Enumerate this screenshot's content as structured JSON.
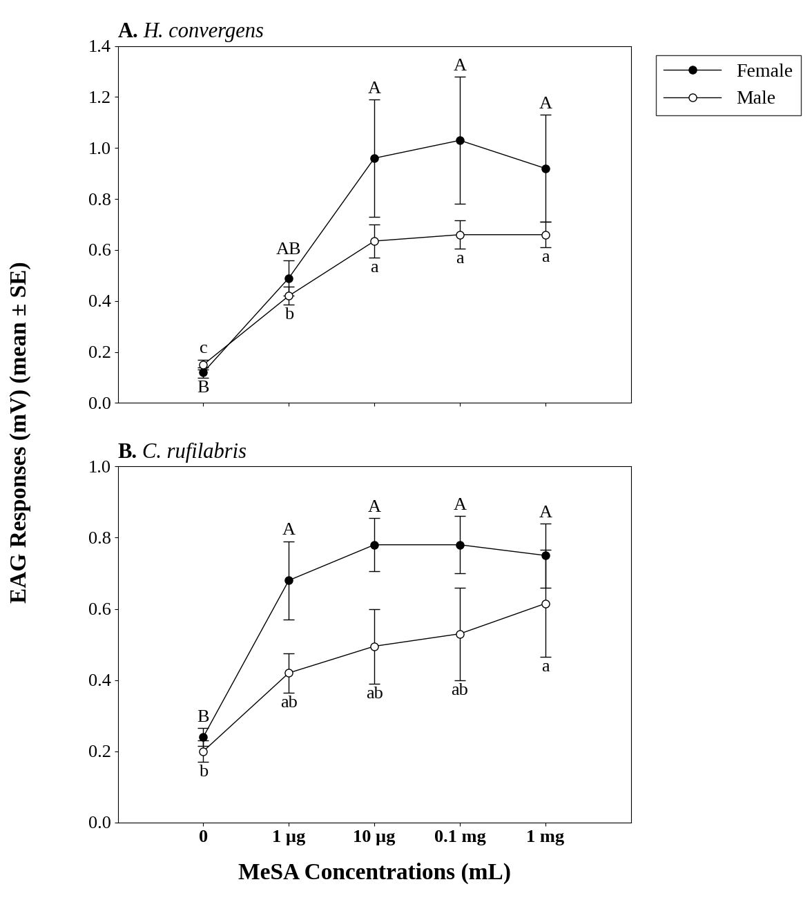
{
  "chart_data": [
    {
      "type": "line",
      "title": "A. H. convergens",
      "categories": [
        "0",
        "1 µg",
        "10 µg",
        "0.1 mg",
        "1 mg"
      ],
      "ylim": [
        0,
        1.4
      ],
      "yticks": [
        {
          "value": 0,
          "label": "0.0"
        },
        0.2,
        0.4,
        0.6,
        0.8,
        {
          "value": 1,
          "label": "1.0"
        },
        1.2,
        1.4
      ],
      "tick_labels": "y",
      "legend": "upper left",
      "series": [
        {
          "name": "Female",
          "color": "#000000",
          "marker": "filled_circle",
          "values": [
            0.12,
            0.49,
            0.96,
            1.03,
            0.92
          ],
          "errors": [
            0.02,
            0.07,
            0.23,
            0.25,
            0.21
          ],
          "letters": [
            "B",
            "AB",
            "A",
            "A",
            "A"
          ],
          "letter_side": [
            "below",
            "above",
            "above",
            "above",
            "above"
          ]
        },
        {
          "name": "Male",
          "color": "#000000",
          "marker": "open_circle",
          "values": [
            0.15,
            0.42,
            0.635,
            0.66,
            0.66
          ],
          "errors": [
            0.02,
            0.035,
            0.065,
            0.055,
            0.05
          ],
          "letters": [
            "c",
            "b",
            "a",
            "a",
            "a"
          ],
          "letter_side": [
            "above",
            "below",
            "below",
            "below",
            "below"
          ]
        }
      ]
    },
    {
      "type": "line",
      "title": "B. C. rufilabris",
      "categories": [
        "0",
        "1 µg",
        "10 µg",
        "0.1 mg",
        "1 mg"
      ],
      "x_label": "MeSA Concentrations (mL)",
      "ylim": [
        0,
        1.0
      ],
      "yticks": [
        {
          "value": 0,
          "label": "0.0"
        },
        0.2,
        0.4,
        0.6,
        0.8,
        {
          "value": 1,
          "label": "1.0"
        }
      ],
      "series": [
        {
          "name": "Female",
          "color": "#000000",
          "marker": "filled_circle",
          "values": [
            0.24,
            0.68,
            0.78,
            0.78,
            0.75
          ],
          "errors": [
            0.025,
            0.11,
            0.075,
            0.08,
            0.09
          ],
          "letters": [
            "B",
            "A",
            "A",
            "A",
            "A"
          ],
          "letter_side": [
            "above",
            "above",
            "above",
            "above",
            "above"
          ]
        },
        {
          "name": "Male",
          "color": "#000000",
          "marker": "open_circle",
          "values": [
            0.2,
            0.42,
            0.495,
            0.53,
            0.615
          ],
          "errors": [
            0.03,
            0.055,
            0.105,
            0.13,
            0.15
          ],
          "letters": [
            "b",
            "ab",
            "ab",
            "ab",
            "a"
          ],
          "letter_side": [
            "below",
            "below",
            "below",
            "below",
            "below"
          ]
        }
      ]
    }
  ],
  "y_label": "EAG Responses (mV) (mean ± SE)"
}
